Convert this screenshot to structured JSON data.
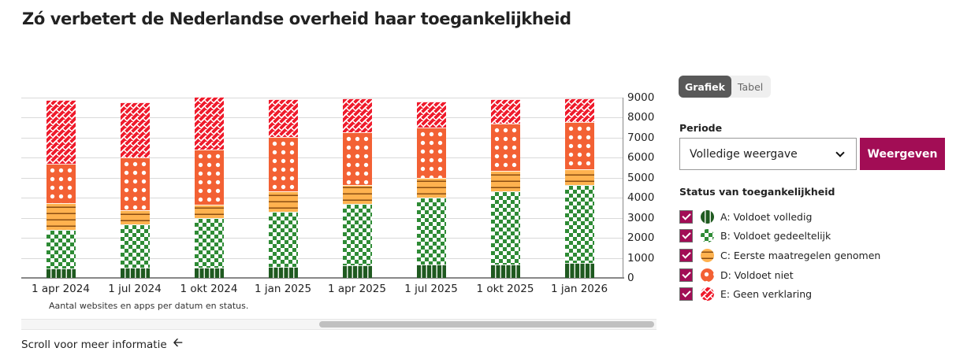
{
  "title": "Zó verbetert de Nederlandse overheid haar toegankelijkheid",
  "view_toggle": {
    "options": [
      "Grafiek",
      "Tabel"
    ],
    "active": "Grafiek"
  },
  "periode": {
    "label": "Periode",
    "selected": "Volledige weergave",
    "button": "Weergeven"
  },
  "legend": {
    "title": "Status van toegankelijkheid",
    "items": [
      {
        "key": "A",
        "label": "A: Voldoet volledig",
        "checked": true,
        "color": "#1f5a20",
        "pattern": "vertical-stripes"
      },
      {
        "key": "B",
        "label": "B: Voldoet gedeeltelijk",
        "checked": true,
        "color": "#2e8b35",
        "pattern": "checkerboard"
      },
      {
        "key": "C",
        "label": "C: Eerste maatregelen genomen",
        "checked": true,
        "color": "#ffb24f",
        "pattern": "horizontal-stripes"
      },
      {
        "key": "D",
        "label": "D: Voldoet niet",
        "checked": true,
        "color": "#f36134",
        "pattern": "dots"
      },
      {
        "key": "E",
        "label": "E: Geen verklaring",
        "checked": true,
        "color": "#ef1c2d",
        "pattern": "zigzag"
      }
    ]
  },
  "caption": "Aantal websites en apps per datum en status.",
  "scroll_hint": "Scroll voor meer informatie",
  "chart_data": {
    "type": "bar",
    "stacked": true,
    "title": "Zó verbetert de Nederlandse overheid haar toegankelijkheid",
    "xlabel": "",
    "ylabel": "Aantal websites en apps per datum en status.",
    "ylim": [
      0,
      9000
    ],
    "yticks": [
      0,
      1000,
      2000,
      3000,
      4000,
      5000,
      6000,
      7000,
      8000,
      9000
    ],
    "y_axis_position": "right",
    "grid": true,
    "legend_position": "right",
    "categories": [
      "1 apr 2024",
      "1 jul 2024",
      "1 okt 2024",
      "1 jan 2025",
      "1 apr 2025",
      "1 jul 2025",
      "1 okt 2025",
      "1 jan 2026"
    ],
    "series": [
      {
        "name": "A: Voldoet volledig",
        "values": [
          470,
          510,
          510,
          550,
          630,
          670,
          670,
          750
        ]
      },
      {
        "name": "B: Voldoet gedeeltelijk",
        "values": [
          1940,
          2170,
          2490,
          2770,
          3080,
          3320,
          3670,
          3870
        ]
      },
      {
        "name": "C: Eerste maatregelen genomen",
        "values": [
          1340,
          710,
          670,
          1020,
          910,
          1020,
          990,
          790
        ]
      },
      {
        "name": "D: Voldoet niet",
        "values": [
          1930,
          2610,
          2720,
          2690,
          2640,
          2490,
          2370,
          2370
        ]
      },
      {
        "name": "E: Geen verklaring",
        "values": [
          3200,
          2760,
          2650,
          1890,
          1700,
          1300,
          1220,
          1180
        ]
      }
    ]
  }
}
